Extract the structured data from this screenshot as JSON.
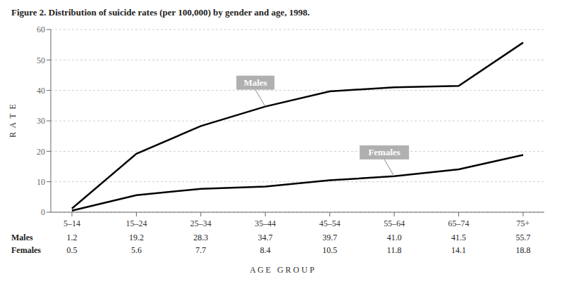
{
  "chart_data": {
    "type": "line",
    "title": "Figure 2. Distribution of suicide rates (per 100,000) by gender and age, 1998.",
    "x_label": "A G E   G R O U P",
    "y_label": "R  A  T  E",
    "categories": [
      "5–14",
      "15–24",
      "25–34",
      "35–44",
      "45–54",
      "55–64",
      "65–74",
      "75+"
    ],
    "series": [
      {
        "name": "Males",
        "color": "#000000",
        "values": [
          1.2,
          19.2,
          28.3,
          34.7,
          39.7,
          41.0,
          41.5,
          55.7
        ],
        "value_labels": [
          "1.2",
          "19.2",
          "28.3",
          "34.7",
          "39.7",
          "41.0",
          "41.5",
          "55.7"
        ]
      },
      {
        "name": "Females",
        "color": "#000000",
        "values": [
          0.5,
          5.6,
          7.7,
          8.4,
          10.5,
          11.8,
          14.1,
          18.8
        ]
      }
    ],
    "ylim": [
      0,
      60
    ],
    "yticks": [
      0,
      10,
      20,
      30,
      40,
      50,
      60
    ],
    "grid": true,
    "data_labels": true
  }
}
